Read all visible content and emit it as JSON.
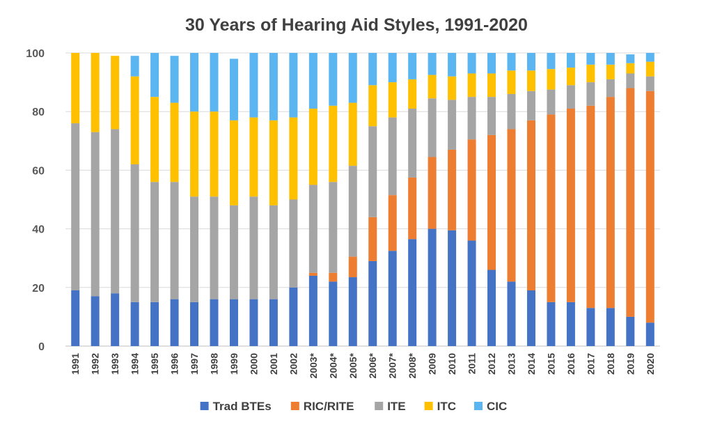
{
  "chart_data": {
    "type": "bar",
    "stacked": true,
    "title": "30 Years of Hearing Aid Styles, 1991-2020",
    "xlabel": "",
    "ylabel": "",
    "ylim": [
      0,
      100
    ],
    "yticks": [
      0,
      20,
      40,
      60,
      80,
      100
    ],
    "grid": true,
    "legend_position": "bottom",
    "categories": [
      "1991",
      "1992",
      "1993",
      "1994",
      "1995",
      "1996",
      "1997",
      "1998",
      "1999",
      "2000",
      "2001",
      "2002",
      "2003*",
      "2004*",
      "2005*",
      "2006*",
      "2007*",
      "2008*",
      "2009",
      "2010",
      "2011",
      "2012",
      "2013",
      "2014",
      "2015",
      "2016",
      "2017",
      "2018",
      "2019",
      "2020"
    ],
    "series": [
      {
        "name": "Trad BTEs",
        "color": "#4472C4",
        "values": [
          19,
          17,
          18,
          15,
          15,
          16,
          15,
          16,
          16,
          16,
          16,
          20,
          24,
          22,
          23.5,
          29,
          32.5,
          36.5,
          40,
          39.5,
          36,
          26,
          22,
          19,
          15,
          15,
          13,
          13,
          10,
          8
        ]
      },
      {
        "name": "RIC/RITE",
        "color": "#ED7D31",
        "values": [
          0,
          0,
          0,
          0,
          0,
          0,
          0,
          0,
          0,
          0,
          0,
          0,
          1,
          3,
          7,
          15,
          19,
          21,
          24.5,
          27.5,
          34.5,
          46,
          52,
          58,
          64,
          66,
          69,
          72,
          78,
          79
        ]
      },
      {
        "name": "ITE",
        "color": "#A5A5A5",
        "values": [
          57,
          56,
          56,
          47,
          41,
          40,
          36,
          35,
          32,
          35,
          32,
          30,
          30,
          31,
          31,
          31,
          26.5,
          23.5,
          20,
          17,
          14.5,
          13,
          12,
          10,
          8.5,
          8,
          8,
          6,
          5,
          5
        ]
      },
      {
        "name": "ITC",
        "color": "#FFC000",
        "values": [
          24,
          27,
          25,
          30,
          29,
          27,
          29,
          29,
          29,
          27,
          29,
          28,
          26,
          26,
          21.5,
          14,
          12,
          10,
          8,
          8,
          8,
          8,
          8,
          7,
          7,
          6,
          6,
          5,
          3.5,
          5
        ]
      },
      {
        "name": "CIC",
        "color": "#5BB5F0",
        "values": [
          0,
          0,
          0,
          7,
          15,
          16,
          20,
          20,
          21,
          22,
          23,
          22,
          19,
          18,
          17,
          11,
          10,
          9,
          7.5,
          8,
          7,
          7,
          6,
          6,
          5.5,
          5,
          4,
          4,
          3,
          3
        ]
      }
    ]
  }
}
